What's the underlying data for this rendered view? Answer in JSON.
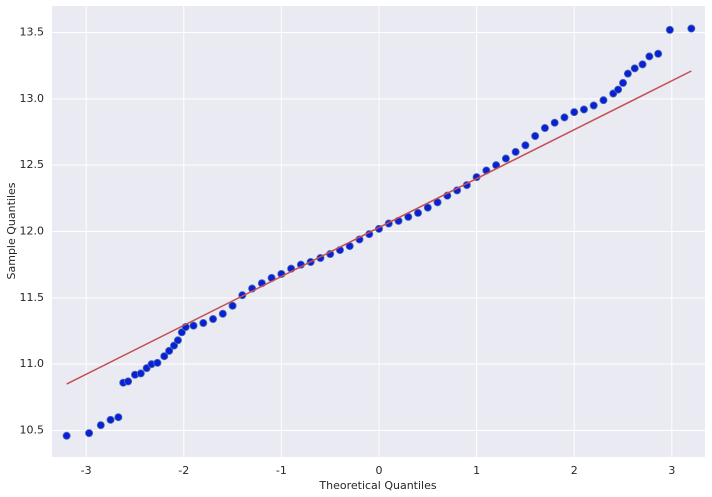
{
  "chart_data": {
    "type": "scatter",
    "xlabel": "Theoretical Quantiles",
    "ylabel": "Sample Quantiles",
    "x": [
      -3.2,
      -2.97,
      -2.85,
      -2.75,
      -2.67,
      -2.62,
      -2.57,
      -2.5,
      -2.44,
      -2.38,
      -2.33,
      -2.27,
      -2.2,
      -2.15,
      -2.1,
      -2.06,
      -2.02,
      -1.98,
      -1.9,
      -1.8,
      -1.7,
      -1.6,
      -1.5,
      -1.4,
      -1.3,
      -1.2,
      -1.1,
      -1.0,
      -0.9,
      -0.8,
      -0.7,
      -0.6,
      -0.5,
      -0.4,
      -0.3,
      -0.2,
      -0.1,
      0,
      0.1,
      0.2,
      0.3,
      0.4,
      0.5,
      0.6,
      0.7,
      0.8,
      0.9,
      1.0,
      1.1,
      1.2,
      1.3,
      1.4,
      1.5,
      1.6,
      1.7,
      1.8,
      1.9,
      2.0,
      2.1,
      2.2,
      2.3,
      2.4,
      2.45,
      2.5,
      2.55,
      2.62,
      2.7,
      2.77,
      2.86,
      2.98,
      3.2
    ],
    "values": [
      10.46,
      10.48,
      10.54,
      10.58,
      10.6,
      10.86,
      10.87,
      10.92,
      10.93,
      10.97,
      11.0,
      11.01,
      11.06,
      11.1,
      11.14,
      11.18,
      11.24,
      11.28,
      11.29,
      11.31,
      11.34,
      11.38,
      11.44,
      11.52,
      11.57,
      11.61,
      11.65,
      11.68,
      11.72,
      11.75,
      11.77,
      11.8,
      11.83,
      11.86,
      11.89,
      11.94,
      11.98,
      12.02,
      12.06,
      12.08,
      12.11,
      12.14,
      12.18,
      12.22,
      12.27,
      12.31,
      12.35,
      12.41,
      12.46,
      12.5,
      12.55,
      12.6,
      12.65,
      12.72,
      12.78,
      12.82,
      12.86,
      12.9,
      12.92,
      12.95,
      12.99,
      13.04,
      13.07,
      13.12,
      13.19,
      13.23,
      13.26,
      13.32,
      13.34,
      13.52,
      13.53
    ],
    "color": "#0a1fd6",
    "reference_line": {
      "x": [
        -3.2,
        3.2
      ],
      "y": [
        10.85,
        13.21
      ],
      "color": "#c44e52"
    },
    "xlim": [
      -3.35,
      3.34
    ],
    "ylim": [
      10.3,
      13.7
    ],
    "xticks": [
      -3,
      -2,
      -1,
      0,
      1,
      2,
      3
    ],
    "yticks": [
      10.5,
      {
        "value": 11,
        "label": "11.0"
      },
      11.5,
      {
        "value": 12,
        "label": "12.0"
      },
      12.5,
      {
        "value": 13,
        "label": "13.0"
      },
      13.5
    ],
    "grid": true
  }
}
